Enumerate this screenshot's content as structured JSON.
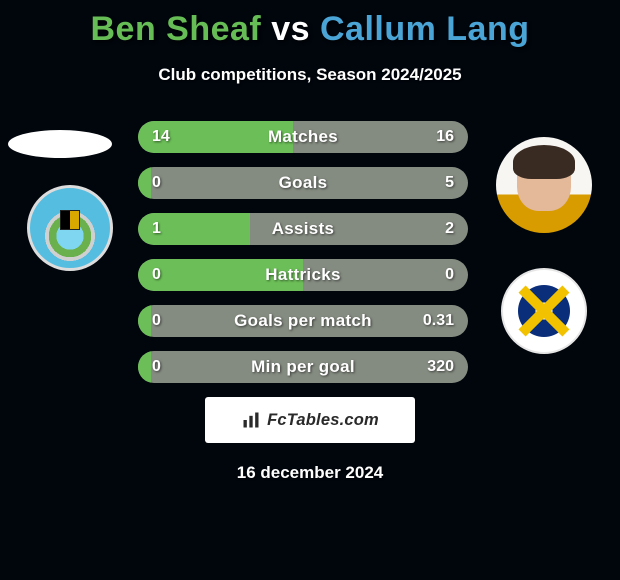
{
  "title": {
    "player_a": "Ben Sheaf",
    "vs": "vs",
    "player_b": "Callum Lang",
    "color_a": "#66bd55",
    "color_vs": "#ffffff",
    "color_b": "#4aa5d6"
  },
  "subtitle": "Club competitions, Season 2024/2025",
  "bars": {
    "bg": "#848b80",
    "fill_a": "#6cbf58",
    "fill_b": "#848b80",
    "height": 32,
    "radius": 16,
    "gap": 14,
    "items": [
      {
        "label": "Matches",
        "left": "14",
        "right": "16",
        "fill_pct": 47
      },
      {
        "label": "Goals",
        "left": "0",
        "right": "5",
        "fill_pct": 4
      },
      {
        "label": "Assists",
        "left": "1",
        "right": "2",
        "fill_pct": 34
      },
      {
        "label": "Hattricks",
        "left": "0",
        "right": "0",
        "fill_pct": 50
      },
      {
        "label": "Goals per match",
        "left": "0",
        "right": "0.31",
        "fill_pct": 4
      },
      {
        "label": "Min per goal",
        "left": "0",
        "right": "320",
        "fill_pct": 4
      }
    ]
  },
  "brand": "FcTables.com",
  "date": "16 december 2024"
}
